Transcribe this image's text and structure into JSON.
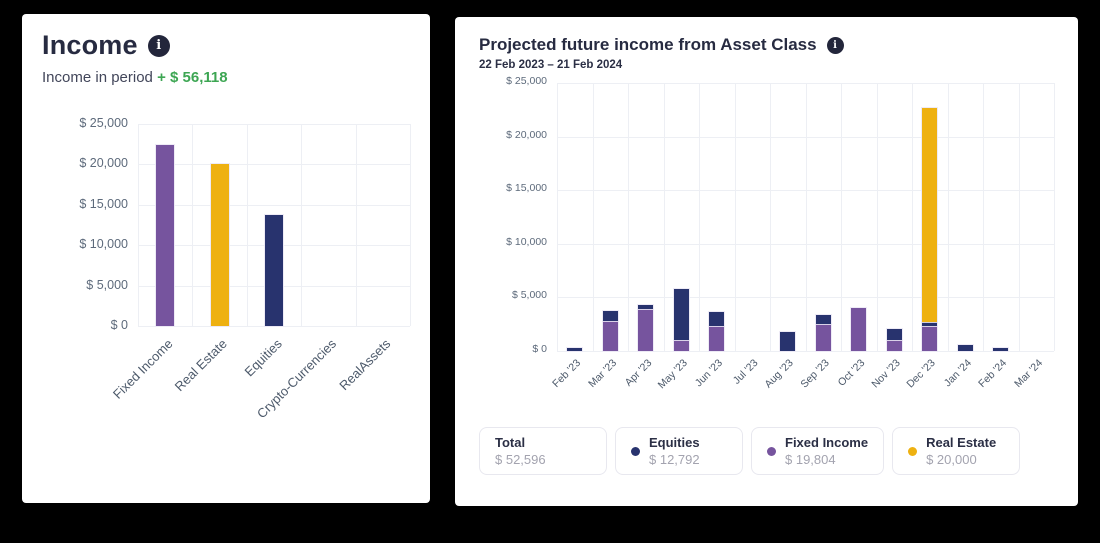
{
  "icons": {
    "info_glyph": "i"
  },
  "colors": {
    "equities": "#28336e",
    "fixed_income": "#76549e",
    "real_estate": "#eeb111",
    "positive_green": "#3da653",
    "card_bg": "#ffffff",
    "page_bg": "#000000"
  },
  "income_panel": {
    "title": "Income",
    "subtitle_label": "Income in period",
    "subtitle_value": "+ $ 56,118"
  },
  "projection_panel": {
    "title": "Projected future income from Asset Class",
    "date_range": "22 Feb 2023 – 21 Feb 2024",
    "legend": [
      {
        "label": "Total",
        "value": "$ 52,596",
        "color": null
      },
      {
        "label": "Equities",
        "value": "$ 12,792",
        "color": "#28336e"
      },
      {
        "label": "Fixed Income",
        "value": "$ 19,804",
        "color": "#76549e"
      },
      {
        "label": "Real Estate",
        "value": "$ 20,000",
        "color": "#eeb111"
      }
    ]
  },
  "chart_data": [
    {
      "type": "bar",
      "title": "Income",
      "categories": [
        "Fixed Income",
        "Real Estate",
        "Equities",
        "Crypto-Currencies",
        "RealAssets"
      ],
      "values": [
        22418,
        20000,
        13700,
        0,
        0
      ],
      "bar_colors": [
        "#76549e",
        "#eeb111",
        "#28336e",
        "#76549e",
        "#76549e"
      ],
      "ylim": [
        0,
        25000
      ],
      "yticks": [
        0,
        5000,
        10000,
        15000,
        20000,
        25000
      ],
      "ytick_labels": [
        "$ 0",
        "$ 5,000",
        "$ 10,000",
        "$ 15,000",
        "$ 20,000",
        "$ 25,000"
      ],
      "grid": true,
      "legend_position": "none"
    },
    {
      "type": "bar",
      "stacked": true,
      "title": "Projected future income from Asset Class",
      "subtitle": "22 Feb 2023 - 21 Feb 2024",
      "categories": [
        "Feb '23",
        "Mar '23",
        "Apr '23",
        "May '23",
        "Jun '23",
        "Jul '23",
        "Aug '23",
        "Sep '23",
        "Oct '23",
        "Nov '23",
        "Dec '23",
        "Jan '24",
        "Feb '24",
        "Mar '24"
      ],
      "series": [
        {
          "name": "Fixed Income",
          "color": "#76549e",
          "values": [
            0,
            2800,
            3900,
            1000,
            2300,
            0,
            0,
            2500,
            4000,
            1000,
            2304,
            0,
            0,
            0
          ]
        },
        {
          "name": "Equities",
          "color": "#28336e",
          "values": [
            250,
            950,
            400,
            4800,
            1350,
            0,
            1800,
            900,
            0,
            1100,
            400,
            600,
            242,
            0
          ]
        },
        {
          "name": "Real Estate",
          "color": "#eeb111",
          "values": [
            0,
            0,
            0,
            0,
            0,
            0,
            0,
            0,
            0,
            0,
            20000,
            0,
            0,
            0
          ]
        }
      ],
      "totals": {
        "total": 52596,
        "equities": 12792,
        "fixed_income": 19804,
        "real_estate": 20000
      },
      "ylim": [
        0,
        25000
      ],
      "yticks": [
        0,
        5000,
        10000,
        15000,
        20000,
        25000
      ],
      "ytick_labels": [
        "$ 0",
        "$ 5,000",
        "$ 10,000",
        "$ 15,000",
        "$ 20,000",
        "$ 25,000"
      ],
      "grid": true,
      "legend_position": "bottom"
    }
  ]
}
